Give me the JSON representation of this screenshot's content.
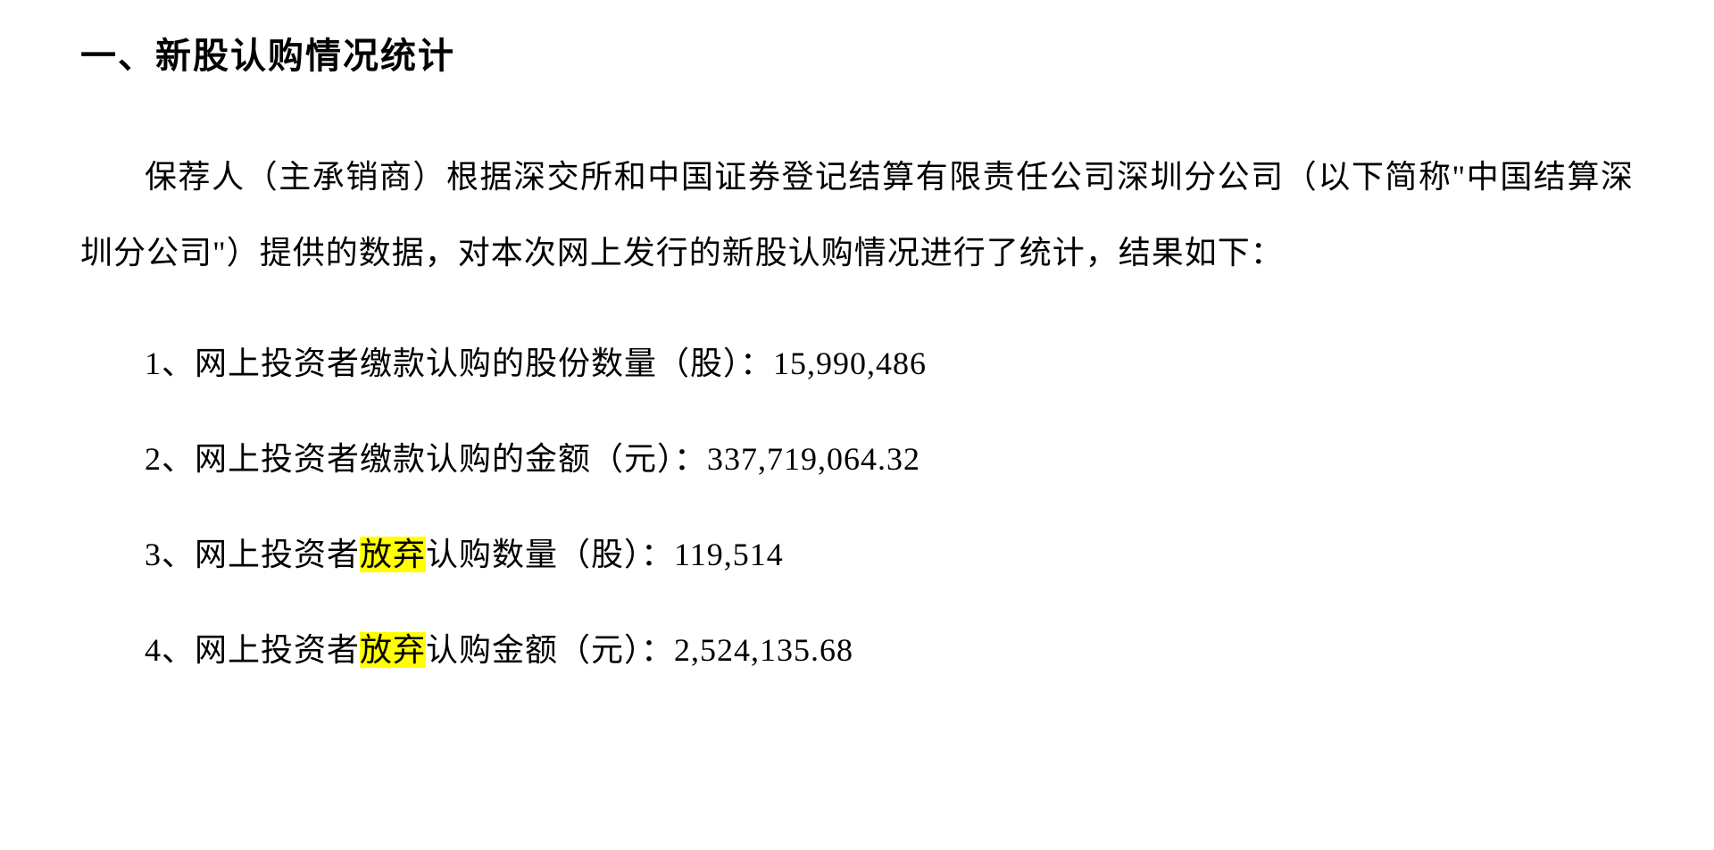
{
  "heading": "一、新股认购情况统计",
  "paragraph": "保荐人（主承销商）根据深交所和中国证券登记结算有限责任公司深圳分公司（以下简称\"中国结算深圳分公司\"）提供的数据，对本次网上发行的新股认购情况进行了统计，结果如下：",
  "items": [
    {
      "prefix": "1、网上投资者缴款认购的股份数量（股）：",
      "value": "15,990,486",
      "highlight": null
    },
    {
      "prefix": "2、网上投资者缴款认购的金额（元）：",
      "value": "337,719,064.32",
      "highlight": null
    },
    {
      "prefix": "3、网上投资者",
      "highlight": "放弃",
      "suffix": "认购数量（股）：",
      "value": "119,514"
    },
    {
      "prefix": "4、网上投资者",
      "highlight": "放弃",
      "suffix": "认购金额（元）：",
      "value": "2,524,135.68"
    }
  ],
  "colors": {
    "background": "#ffffff",
    "text": "#000000",
    "highlight": "#ffff00"
  },
  "typography": {
    "heading_fontsize": 40,
    "body_fontsize": 36,
    "heading_weight": "bold",
    "body_weight": "normal",
    "line_height_paragraph": 2.35,
    "line_height_item": 1.8,
    "text_indent_em": 2
  }
}
